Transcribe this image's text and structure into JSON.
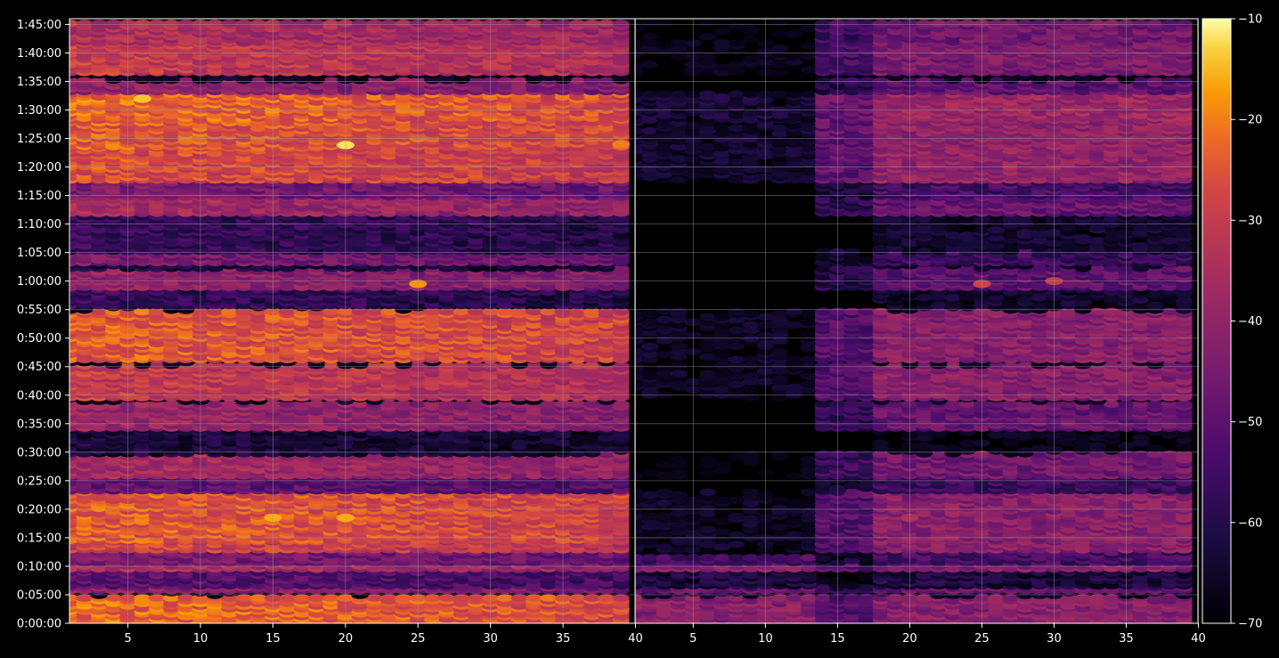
{
  "chart_data": {
    "type": "heatmap",
    "title": "",
    "colormap": "inferno",
    "background": "#000000",
    "grid": true,
    "panels": [
      {
        "name": "",
        "x_range": [
          1,
          40
        ],
        "x_ticks": [
          5,
          10,
          15,
          20,
          25,
          30,
          35,
          40
        ],
        "x_tick_labels": [
          "5",
          "10",
          "15",
          "20",
          "25",
          "30",
          "35",
          "40"
        ],
        "data_x_range": [
          1,
          39
        ]
      },
      {
        "name": "",
        "x_range": [
          1,
          40
        ],
        "x_ticks": [
          5,
          10,
          15,
          20,
          25,
          30,
          35,
          40
        ],
        "x_tick_labels": [
          "5",
          "10",
          "15",
          "20",
          "25",
          "30",
          "35",
          "40"
        ],
        "data_x_range": [
          1,
          39
        ]
      }
    ],
    "y_range_seconds": [
      0,
      6360
    ],
    "y_ticks_seconds": [
      0,
      300,
      600,
      900,
      1200,
      1500,
      1800,
      2100,
      2400,
      2700,
      3000,
      3300,
      3600,
      3900,
      4200,
      4500,
      4800,
      5100,
      5400,
      5700,
      6000,
      6300
    ],
    "y_tick_labels": [
      "0:00:00",
      "0:05:00",
      "0:10:00",
      "0:15:00",
      "0:20:00",
      "0:25:00",
      "0:30:00",
      "0:35:00",
      "0:40:00",
      "0:45:00",
      "0:50:00",
      "0:55:00",
      "1:00:00",
      "1:05:00",
      "1:10:00",
      "1:15:00",
      "1:20:00",
      "1:25:00",
      "1:30:00",
      "1:35:00",
      "1:40:00",
      "1:45:00"
    ],
    "colorbar": {
      "range": [
        -70,
        -10
      ],
      "ticks": [
        -10,
        -20,
        -30,
        -40,
        -50,
        -60,
        -70
      ],
      "tick_labels": [
        "−10",
        "−20",
        "−30",
        "−40",
        "−50",
        "−60",
        "−70"
      ]
    },
    "bands": [
      {
        "start_s": 0,
        "end_s": 280,
        "left": -22,
        "right": -42
      },
      {
        "start_s": 280,
        "end_s": 330,
        "left": -70,
        "right": -70
      },
      {
        "start_s": 330,
        "end_s": 380,
        "left": -40,
        "right": -48
      },
      {
        "start_s": 380,
        "end_s": 560,
        "left": -50,
        "right": -62
      },
      {
        "start_s": 560,
        "end_s": 620,
        "left": -34,
        "right": -42
      },
      {
        "start_s": 620,
        "end_s": 760,
        "left": -44,
        "right": -54
      },
      {
        "start_s": 760,
        "end_s": 860,
        "left": -28,
        "right": -42
      },
      {
        "start_s": 860,
        "end_s": 1380,
        "left": -24,
        "right": -42
      },
      {
        "start_s": 1380,
        "end_s": 1540,
        "left": -48,
        "right": -56
      },
      {
        "start_s": 1540,
        "end_s": 1770,
        "left": -36,
        "right": -46
      },
      {
        "start_s": 1770,
        "end_s": 2040,
        "left": -62,
        "right": -70
      },
      {
        "start_s": 2040,
        "end_s": 2320,
        "left": -38,
        "right": -48
      },
      {
        "start_s": 2320,
        "end_s": 2360,
        "left": -66,
        "right": -70
      },
      {
        "start_s": 2360,
        "end_s": 2700,
        "left": -30,
        "right": -42
      },
      {
        "start_s": 2700,
        "end_s": 2760,
        "left": -68,
        "right": -70
      },
      {
        "start_s": 2760,
        "end_s": 3280,
        "left": -24,
        "right": -42
      },
      {
        "start_s": 3280,
        "end_s": 3330,
        "left": -70,
        "right": -70
      },
      {
        "start_s": 3330,
        "end_s": 3520,
        "left": -56,
        "right": -66
      },
      {
        "start_s": 3520,
        "end_s": 3720,
        "left": -40,
        "right": -50
      },
      {
        "start_s": 3720,
        "end_s": 3780,
        "left": -62,
        "right": -70
      },
      {
        "start_s": 3780,
        "end_s": 3900,
        "left": -44,
        "right": -56
      },
      {
        "start_s": 3900,
        "end_s": 4300,
        "left": -56,
        "right": -66
      },
      {
        "start_s": 4300,
        "end_s": 4480,
        "left": -36,
        "right": -48
      },
      {
        "start_s": 4480,
        "end_s": 4650,
        "left": -44,
        "right": -54
      },
      {
        "start_s": 4650,
        "end_s": 5000,
        "left": -26,
        "right": -40
      },
      {
        "start_s": 5000,
        "end_s": 5300,
        "left": -24,
        "right": -40
      },
      {
        "start_s": 5300,
        "end_s": 5580,
        "left": -22,
        "right": -38
      },
      {
        "start_s": 5580,
        "end_s": 5700,
        "left": -40,
        "right": -50
      },
      {
        "start_s": 5700,
        "end_s": 5780,
        "left": -66,
        "right": -70
      },
      {
        "start_s": 5780,
        "end_s": 6100,
        "left": -30,
        "right": -44
      },
      {
        "start_s": 6100,
        "end_s": 6300,
        "left": -34,
        "right": -46
      }
    ],
    "hot_spots": [
      {
        "panel": 0,
        "x": 6,
        "y_s": 5520,
        "value": -14
      },
      {
        "panel": 0,
        "x": 20,
        "y_s": 5030,
        "value": -12
      },
      {
        "panel": 0,
        "x": 25,
        "y_s": 3570,
        "value": -18
      },
      {
        "panel": 0,
        "x": 15,
        "y_s": 1110,
        "value": -16
      },
      {
        "panel": 0,
        "x": 20,
        "y_s": 1110,
        "value": -16
      },
      {
        "panel": 0,
        "x": 39,
        "y_s": 5040,
        "value": -20
      },
      {
        "panel": 1,
        "x": 30,
        "y_s": 3600,
        "value": -30
      },
      {
        "panel": 1,
        "x": 20,
        "y_s": 1110,
        "value": -34
      },
      {
        "panel": 1,
        "x": 25,
        "y_s": 3570,
        "value": -28
      }
    ]
  }
}
